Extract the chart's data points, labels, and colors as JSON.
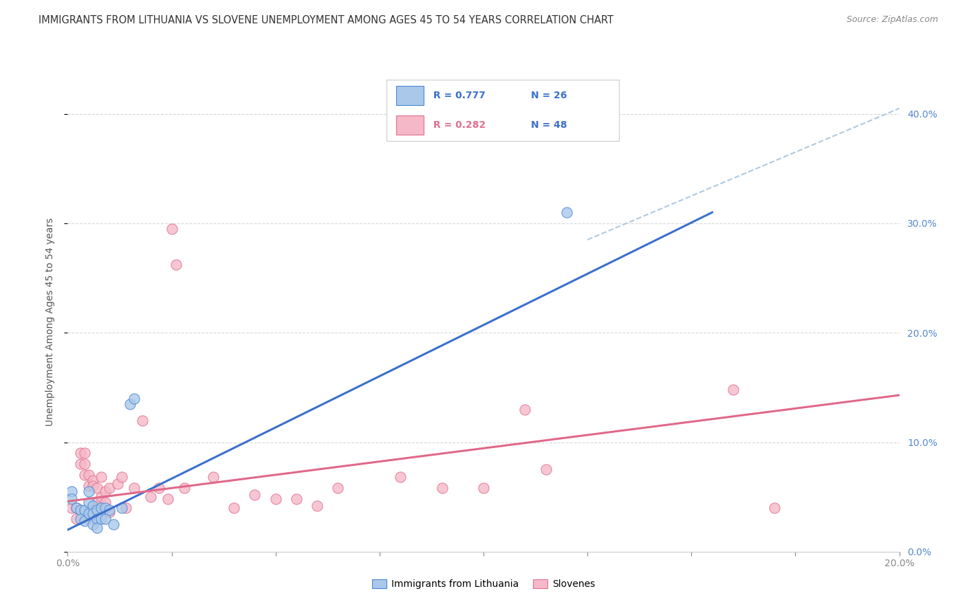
{
  "title": "IMMIGRANTS FROM LITHUANIA VS SLOVENE UNEMPLOYMENT AMONG AGES 45 TO 54 YEARS CORRELATION CHART",
  "source": "Source: ZipAtlas.com",
  "ylabel": "Unemployment Among Ages 45 to 54 years",
  "xlim": [
    0.0,
    0.2
  ],
  "ylim": [
    0.0,
    0.42
  ],
  "yticks": [
    0.0,
    0.1,
    0.2,
    0.3,
    0.4
  ],
  "blue_R": 0.777,
  "blue_N": 26,
  "pink_R": 0.282,
  "pink_N": 48,
  "blue_scatter_color": "#aac8ea",
  "pink_scatter_color": "#f5b8c8",
  "blue_edge_color": "#4a86d0",
  "pink_edge_color": "#e07090",
  "blue_line_color": "#3a70cc",
  "pink_line_color": "#e06888",
  "dashed_line_color": "#a8c4dd",
  "background_color": "#ffffff",
  "grid_color": "#d8d8d8",
  "title_color": "#333333",
  "axis_label_color": "#555555",
  "right_tick_color": "#5588cc",
  "legend_text_blue_color": "#3a70cc",
  "legend_text_n_color": "#3a70cc",
  "legend_label1": "Immigrants from Lithuania",
  "legend_label2": "Slovenes",
  "blue_x": [
    0.001,
    0.001,
    0.002,
    0.003,
    0.003,
    0.004,
    0.004,
    0.005,
    0.005,
    0.005,
    0.006,
    0.006,
    0.006,
    0.007,
    0.007,
    0.007,
    0.008,
    0.008,
    0.009,
    0.009,
    0.01,
    0.011,
    0.013,
    0.015,
    0.016,
    0.12
  ],
  "blue_y": [
    0.055,
    0.048,
    0.04,
    0.038,
    0.03,
    0.038,
    0.028,
    0.055,
    0.045,
    0.035,
    0.042,
    0.035,
    0.025,
    0.038,
    0.03,
    0.022,
    0.04,
    0.03,
    0.04,
    0.03,
    0.038,
    0.025,
    0.04,
    0.135,
    0.14,
    0.31
  ],
  "pink_x": [
    0.001,
    0.002,
    0.002,
    0.003,
    0.003,
    0.004,
    0.004,
    0.004,
    0.005,
    0.005,
    0.005,
    0.006,
    0.006,
    0.006,
    0.007,
    0.007,
    0.008,
    0.008,
    0.008,
    0.009,
    0.009,
    0.01,
    0.01,
    0.012,
    0.013,
    0.014,
    0.016,
    0.018,
    0.02,
    0.022,
    0.024,
    0.025,
    0.026,
    0.028,
    0.035,
    0.04,
    0.045,
    0.05,
    0.055,
    0.06,
    0.065,
    0.08,
    0.09,
    0.1,
    0.11,
    0.115,
    0.16,
    0.17
  ],
  "pink_y": [
    0.04,
    0.04,
    0.03,
    0.09,
    0.08,
    0.09,
    0.08,
    0.07,
    0.07,
    0.06,
    0.03,
    0.065,
    0.06,
    0.04,
    0.058,
    0.045,
    0.068,
    0.05,
    0.04,
    0.055,
    0.045,
    0.058,
    0.036,
    0.062,
    0.068,
    0.04,
    0.058,
    0.12,
    0.05,
    0.058,
    0.048,
    0.295,
    0.262,
    0.058,
    0.068,
    0.04,
    0.052,
    0.048,
    0.048,
    0.042,
    0.058,
    0.068,
    0.058,
    0.058,
    0.13,
    0.075,
    0.148,
    0.04
  ],
  "blue_trend_x": [
    0.0,
    0.155
  ],
  "blue_trend_y": [
    0.02,
    0.31
  ],
  "pink_trend_x": [
    0.0,
    0.2
  ],
  "pink_trend_y": [
    0.046,
    0.143
  ],
  "dash_trend_x": [
    0.125,
    0.2
  ],
  "dash_trend_y": [
    0.285,
    0.405
  ]
}
